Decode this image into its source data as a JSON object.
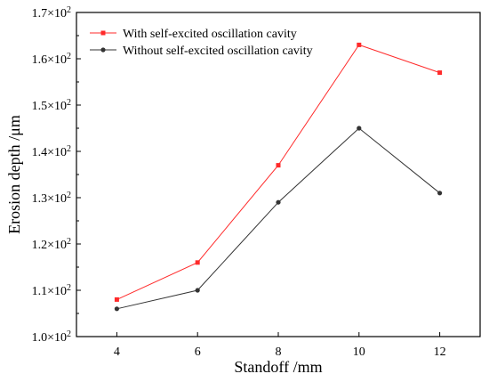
{
  "chart_data": {
    "type": "line",
    "title": "",
    "xlabel": "Standoff /mm",
    "ylabel": "Erosion depth /μm",
    "x": [
      4,
      6,
      8,
      10,
      12
    ],
    "xlim": [
      3,
      13
    ],
    "ylim": [
      100,
      170
    ],
    "x_ticks": [
      4,
      6,
      8,
      10,
      12
    ],
    "y_ticks": [
      {
        "value": 100,
        "mantissa": "1.0×10",
        "exp": "2"
      },
      {
        "value": 110,
        "mantissa": "1.1×10",
        "exp": "2"
      },
      {
        "value": 120,
        "mantissa": "1.2×10",
        "exp": "2"
      },
      {
        "value": 130,
        "mantissa": "1.3×10",
        "exp": "2"
      },
      {
        "value": 140,
        "mantissa": "1.4×10",
        "exp": "2"
      },
      {
        "value": 150,
        "mantissa": "1.5×10",
        "exp": "2"
      },
      {
        "value": 160,
        "mantissa": "1.6×10",
        "exp": "2"
      },
      {
        "value": 170,
        "mantissa": "1.7×10",
        "exp": "2"
      }
    ],
    "grid": false,
    "legend_position": "top-left",
    "series": [
      {
        "name": "With self-excited oscillation cavity",
        "color": "#ff2a2a",
        "marker": "square",
        "values": [
          108,
          116,
          137,
          163,
          157
        ]
      },
      {
        "name": "Without self-excited oscillation cavity",
        "color": "#333333",
        "marker": "circle",
        "values": [
          106,
          110,
          129,
          145,
          131
        ]
      }
    ]
  }
}
